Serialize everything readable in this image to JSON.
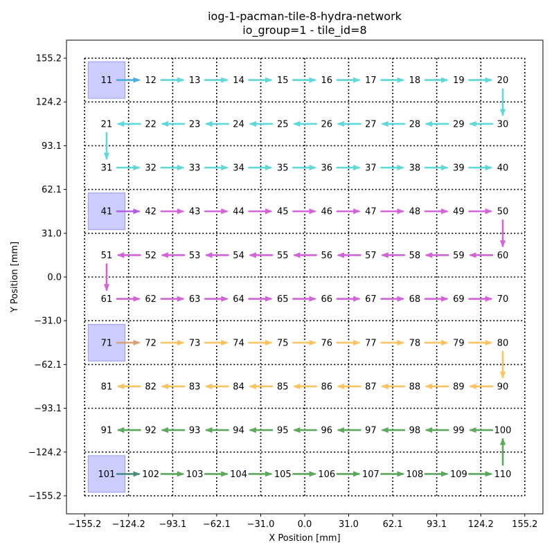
{
  "chart_data": {
    "type": "network-grid",
    "title_line1": "iog-1-pacman-tile-8-hydra-network",
    "title_line2": "io_group=1 - tile_id=8",
    "xlabel": "X Position [mm]",
    "ylabel": "Y Position [mm]",
    "xlim": [
      -168.0,
      168.0
    ],
    "ylim": [
      -168.0,
      168.0
    ],
    "ticks": [
      -155.2,
      -124.2,
      -93.1,
      -62.1,
      -31.0,
      0.0,
      31.0,
      62.1,
      93.1,
      124.2,
      155.2
    ],
    "tick_labels": [
      "−155.2",
      "−124.2",
      "−93.1",
      "−62.1",
      "−31.0",
      "0.0",
      "31.0",
      "62.1",
      "93.1",
      "124.2",
      "155.2"
    ],
    "grid": "dotted",
    "columns_x": [
      -139.7,
      -108.6,
      -77.6,
      -46.6,
      -15.5,
      15.5,
      46.6,
      77.6,
      108.6,
      139.7
    ],
    "rows": [
      {
        "y": 139.7,
        "chips": [
          "11",
          "12",
          "13",
          "14",
          "15",
          "16",
          "17",
          "18",
          "19",
          "20"
        ]
      },
      {
        "y": 108.6,
        "chips": [
          "21",
          "22",
          "23",
          "24",
          "25",
          "26",
          "27",
          "28",
          "29",
          "30"
        ]
      },
      {
        "y": 77.6,
        "chips": [
          "31",
          "32",
          "33",
          "34",
          "35",
          "36",
          "37",
          "38",
          "39",
          "40"
        ]
      },
      {
        "y": 46.6,
        "chips": [
          "41",
          "42",
          "43",
          "44",
          "45",
          "46",
          "47",
          "48",
          "49",
          "50"
        ]
      },
      {
        "y": 15.5,
        "chips": [
          "51",
          "52",
          "53",
          "54",
          "55",
          "56",
          "57",
          "58",
          "59",
          "60"
        ]
      },
      {
        "y": -15.5,
        "chips": [
          "61",
          "62",
          "63",
          "64",
          "65",
          "66",
          "67",
          "68",
          "69",
          "70"
        ]
      },
      {
        "y": -46.6,
        "chips": [
          "71",
          "72",
          "73",
          "74",
          "75",
          "76",
          "77",
          "78",
          "79",
          "80"
        ]
      },
      {
        "y": -77.6,
        "chips": [
          "81",
          "82",
          "83",
          "84",
          "85",
          "86",
          "87",
          "88",
          "89",
          "90"
        ]
      },
      {
        "y": -108.6,
        "chips": [
          "91",
          "92",
          "93",
          "94",
          "95",
          "96",
          "97",
          "98",
          "99",
          "100"
        ]
      },
      {
        "y": -139.7,
        "chips": [
          "101",
          "102",
          "103",
          "104",
          "105",
          "106",
          "107",
          "108",
          "109",
          "110"
        ]
      }
    ],
    "root_chips": [
      "11",
      "41",
      "71",
      "101"
    ],
    "root_color": "#ccccff",
    "root_edge_color": "#9999ff",
    "networks": [
      {
        "color": "#5fd8d8",
        "root_link_color": "#4aaee0",
        "links": [
          [
            "11",
            "12"
          ],
          [
            "12",
            "13"
          ],
          [
            "13",
            "14"
          ],
          [
            "14",
            "15"
          ],
          [
            "15",
            "16"
          ],
          [
            "16",
            "17"
          ],
          [
            "17",
            "18"
          ],
          [
            "18",
            "19"
          ],
          [
            "19",
            "20"
          ],
          [
            "20",
            "30"
          ],
          [
            "30",
            "29"
          ],
          [
            "29",
            "28"
          ],
          [
            "28",
            "27"
          ],
          [
            "27",
            "26"
          ],
          [
            "26",
            "25"
          ],
          [
            "25",
            "24"
          ],
          [
            "24",
            "23"
          ],
          [
            "23",
            "22"
          ],
          [
            "22",
            "21"
          ],
          [
            "21",
            "31"
          ],
          [
            "31",
            "32"
          ],
          [
            "32",
            "33"
          ],
          [
            "33",
            "34"
          ],
          [
            "34",
            "35"
          ],
          [
            "35",
            "36"
          ],
          [
            "36",
            "37"
          ],
          [
            "37",
            "38"
          ],
          [
            "38",
            "39"
          ],
          [
            "39",
            "40"
          ]
        ]
      },
      {
        "color": "#d462d8",
        "root_link_color": "#b45ee4",
        "links": [
          [
            "41",
            "42"
          ],
          [
            "42",
            "43"
          ],
          [
            "43",
            "44"
          ],
          [
            "44",
            "45"
          ],
          [
            "45",
            "46"
          ],
          [
            "46",
            "47"
          ],
          [
            "47",
            "48"
          ],
          [
            "48",
            "49"
          ],
          [
            "49",
            "50"
          ],
          [
            "50",
            "60"
          ],
          [
            "60",
            "59"
          ],
          [
            "59",
            "58"
          ],
          [
            "58",
            "57"
          ],
          [
            "57",
            "56"
          ],
          [
            "56",
            "55"
          ],
          [
            "55",
            "54"
          ],
          [
            "54",
            "53"
          ],
          [
            "53",
            "52"
          ],
          [
            "52",
            "51"
          ],
          [
            "51",
            "61"
          ],
          [
            "61",
            "62"
          ],
          [
            "62",
            "63"
          ],
          [
            "63",
            "64"
          ],
          [
            "64",
            "65"
          ],
          [
            "65",
            "66"
          ],
          [
            "66",
            "67"
          ],
          [
            "67",
            "68"
          ],
          [
            "68",
            "69"
          ],
          [
            "69",
            "70"
          ]
        ]
      },
      {
        "color": "#fcc25e",
        "root_link_color": "#d9a070",
        "links": [
          [
            "71",
            "72"
          ],
          [
            "72",
            "73"
          ],
          [
            "73",
            "74"
          ],
          [
            "74",
            "75"
          ],
          [
            "75",
            "76"
          ],
          [
            "76",
            "77"
          ],
          [
            "77",
            "78"
          ],
          [
            "78",
            "79"
          ],
          [
            "79",
            "80"
          ],
          [
            "80",
            "90"
          ],
          [
            "90",
            "89"
          ],
          [
            "89",
            "88"
          ],
          [
            "88",
            "87"
          ],
          [
            "87",
            "86"
          ],
          [
            "86",
            "85"
          ],
          [
            "85",
            "84"
          ],
          [
            "84",
            "83"
          ],
          [
            "83",
            "82"
          ],
          [
            "82",
            "81"
          ]
        ]
      },
      {
        "color": "#5ca85c",
        "root_link_color": "#4c8e7c",
        "links": [
          [
            "101",
            "102"
          ],
          [
            "102",
            "103"
          ],
          [
            "103",
            "104"
          ],
          [
            "104",
            "105"
          ],
          [
            "105",
            "106"
          ],
          [
            "106",
            "107"
          ],
          [
            "107",
            "108"
          ],
          [
            "108",
            "109"
          ],
          [
            "109",
            "110"
          ],
          [
            "110",
            "100"
          ],
          [
            "100",
            "99"
          ],
          [
            "99",
            "98"
          ],
          [
            "98",
            "97"
          ],
          [
            "97",
            "96"
          ],
          [
            "96",
            "95"
          ],
          [
            "95",
            "94"
          ],
          [
            "94",
            "93"
          ],
          [
            "93",
            "92"
          ],
          [
            "92",
            "91"
          ]
        ]
      }
    ]
  }
}
